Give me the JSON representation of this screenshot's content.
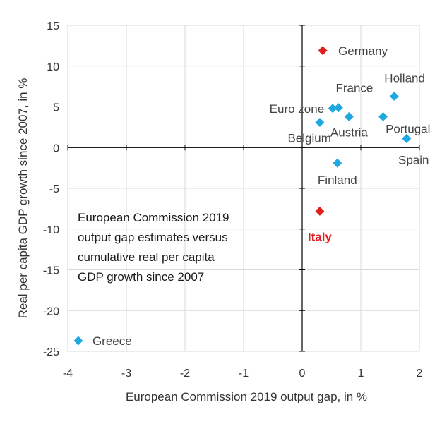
{
  "colors": {
    "default_marker": "#1fa8e0",
    "highlight_marker": "#e0201b",
    "highlight_label": "#e02020",
    "grid": "#d9d9d9",
    "axis": "#000000"
  },
  "chart_data": {
    "type": "scatter",
    "title": "",
    "xlabel": "European Commission 2019 output gap, in %",
    "ylabel": "Real per capita GDP growth since 2007, in %",
    "xlim": [
      -4,
      2
    ],
    "ylim": [
      -25,
      15
    ],
    "x_ticks": [
      -4,
      -3,
      -2,
      -1,
      0,
      1,
      2
    ],
    "y_ticks": [
      15,
      10,
      5,
      0,
      -5,
      -10,
      -15,
      -20,
      -25
    ],
    "grid": true,
    "marker": "diamond",
    "annotation": [
      "European Commission 2019",
      "output gap estimates versus",
      "cumulative real per capita",
      "GDP growth since 2007"
    ],
    "points": [
      {
        "label": "Germany",
        "x": 0.35,
        "y": 11.9,
        "highlight": true,
        "label_pos": "right"
      },
      {
        "label": "Holland",
        "x": 1.57,
        "y": 6.3,
        "highlight": false,
        "label_pos": "above-right"
      },
      {
        "label": "France",
        "x": 0.62,
        "y": 4.9,
        "highlight": false,
        "label_pos": "above-right"
      },
      {
        "label": "Euro zone",
        "x": 0.52,
        "y": 4.8,
        "highlight": false,
        "label_pos": "left"
      },
      {
        "label": "Austria",
        "x": 0.8,
        "y": 3.8,
        "highlight": false,
        "label_pos": "below"
      },
      {
        "label": "",
        "x": 1.38,
        "y": 3.8,
        "highlight": false,
        "label_pos": "none"
      },
      {
        "label": "Belgium",
        "x": 0.3,
        "y": 3.1,
        "highlight": false,
        "label_pos": "below-left"
      },
      {
        "label": "Portugal",
        "x": 1.78,
        "y": 1.1,
        "highlight": false,
        "label_pos": "above"
      },
      {
        "label": "Spain",
        "x": 1.78,
        "y": 1.1,
        "highlight": false,
        "label_pos": "below"
      },
      {
        "label": "Finland",
        "x": 0.6,
        "y": -1.9,
        "highlight": false,
        "label_pos": "below"
      },
      {
        "label": "Italy",
        "x": 0.3,
        "y": -7.8,
        "highlight": true,
        "label_pos": "below"
      },
      {
        "label": "Greece",
        "x": -3.82,
        "y": -23.7,
        "highlight": false,
        "label_pos": "right"
      }
    ]
  }
}
